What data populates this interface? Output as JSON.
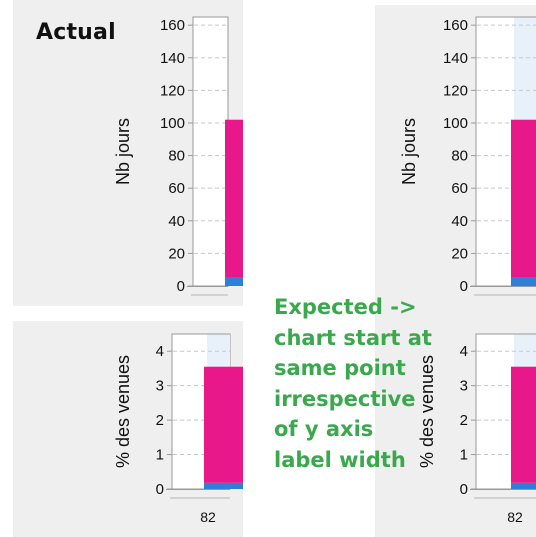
{
  "heading": "Actual",
  "note_lines": [
    "Expected ->",
    "chart start at",
    "same point",
    "irrespective",
    "of  y axis",
    "label width"
  ],
  "colors": {
    "panel_bg": "#efefef",
    "plot_bg": "#ffffff",
    "highlight_band": "#e8f1fa",
    "bar_main": "#e8178a",
    "bar_base": "#2e7fd8",
    "grid": "#c8c8c8",
    "axis": "#999999",
    "note": "#3aa84d"
  },
  "chart_data": [
    {
      "type": "bar",
      "panel": "actual-top",
      "ylabel": "Nb jours",
      "ylim": [
        0,
        165
      ],
      "yticks": [
        0,
        20,
        40,
        60,
        80,
        100,
        120,
        140,
        160
      ],
      "grid": true,
      "series": [
        {
          "values": [
            5
          ]
        },
        {
          "values": [
            97
          ]
        }
      ]
    },
    {
      "type": "bar",
      "panel": "actual-bottom",
      "ylabel": "% des venues",
      "ylim": [
        0,
        4.5
      ],
      "yticks": [
        0,
        1,
        2,
        3,
        4
      ],
      "grid": true,
      "categories": [
        "82"
      ],
      "series": [
        {
          "values": [
            0.18
          ]
        },
        {
          "values": [
            3.37
          ]
        }
      ]
    },
    {
      "type": "bar",
      "panel": "expected-top",
      "ylabel": "Nb jours",
      "ylim": [
        0,
        165
      ],
      "yticks": [
        0,
        20,
        40,
        60,
        80,
        100,
        120,
        140,
        160
      ],
      "grid": true,
      "series": [
        {
          "values": [
            5
          ]
        },
        {
          "values": [
            97
          ]
        }
      ]
    },
    {
      "type": "bar",
      "panel": "expected-bottom",
      "ylabel": "% des venues",
      "ylim": [
        0,
        4.5
      ],
      "yticks": [
        0,
        1,
        2,
        3,
        4
      ],
      "grid": true,
      "categories": [
        "82"
      ],
      "series": [
        {
          "values": [
            0.18
          ]
        },
        {
          "values": [
            3.37
          ]
        }
      ]
    }
  ]
}
